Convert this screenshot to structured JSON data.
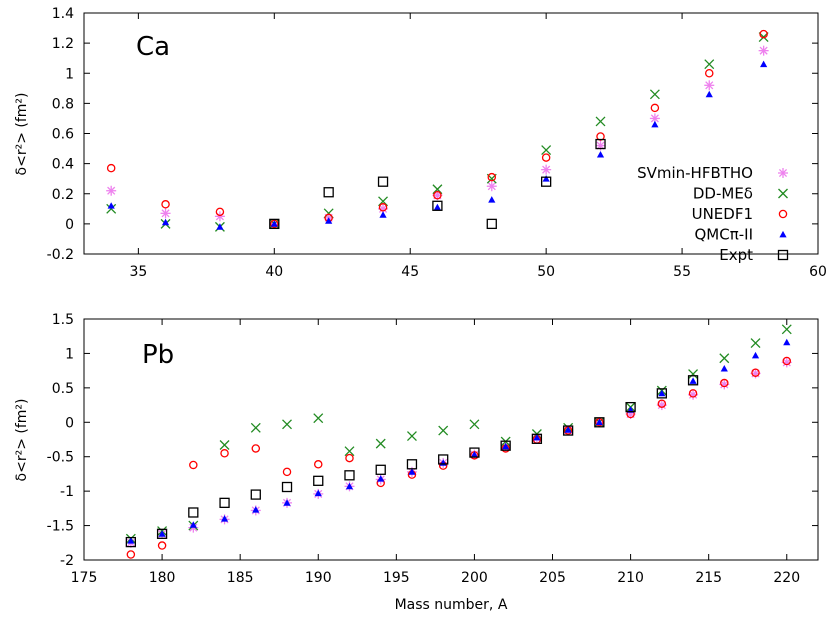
{
  "colors": {
    "SVmin-HFBTHO": "#ee82ee",
    "DD-MEδ": "#228b22",
    "UNEDF1": "#ff0000",
    "QMCπ-II": "#0000ff",
    "Expt": "#000000"
  },
  "chart_data": [
    {
      "type": "scatter",
      "panel_label": "Ca",
      "xlabel": "",
      "ylabel": "δ<r²> (fm²)",
      "xlim": [
        33,
        60
      ],
      "ylim": [
        -0.2,
        1.4
      ],
      "xticks": [
        35,
        40,
        45,
        50,
        55,
        60
      ],
      "yticks": [
        -0.2,
        0,
        0.2,
        0.4,
        0.6,
        0.8,
        1,
        1.2,
        1.4
      ],
      "legend": "right",
      "series": [
        {
          "name": "SVmin-HFBTHO",
          "marker": "asterisk",
          "x": [
            34,
            36,
            38,
            40,
            42,
            44,
            46,
            48,
            50,
            52,
            54,
            56,
            58
          ],
          "y": [
            0.22,
            0.07,
            0.05,
            0.0,
            0.04,
            0.1,
            0.19,
            0.25,
            0.36,
            0.52,
            0.7,
            0.92,
            1.15
          ]
        },
        {
          "name": "DD-MEδ",
          "marker": "x",
          "x": [
            34,
            36,
            38,
            40,
            42,
            44,
            46,
            48,
            50,
            52,
            54,
            56,
            58
          ],
          "y": [
            0.1,
            0.0,
            -0.02,
            0.0,
            0.07,
            0.15,
            0.23,
            0.3,
            0.49,
            0.68,
            0.86,
            1.06,
            1.24
          ]
        },
        {
          "name": "UNEDF1",
          "marker": "circle",
          "x": [
            34,
            36,
            38,
            40,
            42,
            44,
            46,
            48,
            50,
            52,
            54,
            56,
            58
          ],
          "y": [
            0.37,
            0.13,
            0.08,
            0.0,
            0.04,
            0.11,
            0.19,
            0.31,
            0.44,
            0.58,
            0.77,
            1.0,
            1.26
          ]
        },
        {
          "name": "QMCπ-II",
          "marker": "triangle",
          "x": [
            34,
            36,
            38,
            40,
            42,
            44,
            46,
            48,
            50,
            52,
            54,
            56,
            58
          ],
          "y": [
            0.12,
            0.01,
            -0.02,
            0.0,
            0.02,
            0.06,
            0.11,
            0.16,
            0.3,
            0.46,
            0.66,
            0.86,
            1.06
          ]
        },
        {
          "name": "Expt",
          "marker": "square",
          "x": [
            40,
            42,
            44,
            46,
            48,
            50,
            52
          ],
          "y": [
            0.0,
            0.21,
            0.28,
            0.12,
            0.0,
            0.28,
            0.53
          ]
        }
      ]
    },
    {
      "type": "scatter",
      "panel_label": "Pb",
      "xlabel": "Mass number, A",
      "ylabel": "δ<r²> (fm²)",
      "xlim": [
        175,
        222
      ],
      "ylim": [
        -2,
        1.5
      ],
      "xticks": [
        175,
        180,
        185,
        190,
        195,
        200,
        205,
        210,
        215,
        220
      ],
      "yticks": [
        -2,
        -1.5,
        -1,
        -0.5,
        0,
        0.5,
        1,
        1.5
      ],
      "legend": "none",
      "series": [
        {
          "name": "SVmin-HFBTHO",
          "marker": "asterisk",
          "x": [
            178,
            180,
            182,
            184,
            186,
            188,
            190,
            192,
            194,
            196,
            198,
            200,
            202,
            204,
            206,
            208,
            210,
            212,
            214,
            216,
            218,
            220
          ],
          "y": [
            -1.75,
            -1.62,
            -1.53,
            -1.41,
            -1.28,
            -1.17,
            -1.04,
            -0.93,
            -0.83,
            -0.72,
            -0.59,
            -0.47,
            -0.36,
            -0.23,
            -0.12,
            0.0,
            0.12,
            0.25,
            0.4,
            0.55,
            0.71,
            0.87
          ]
        },
        {
          "name": "DD-MEδ",
          "marker": "x",
          "x": [
            178,
            180,
            182,
            184,
            186,
            188,
            190,
            192,
            194,
            196,
            198,
            200,
            202,
            204,
            206,
            208,
            210,
            212,
            214,
            216,
            218,
            220
          ],
          "y": [
            -1.69,
            -1.58,
            -1.5,
            -0.33,
            -0.08,
            -0.03,
            0.06,
            -0.42,
            -0.31,
            -0.2,
            -0.12,
            -0.03,
            -0.28,
            -0.17,
            -0.08,
            0.0,
            0.22,
            0.46,
            0.7,
            0.93,
            1.15,
            1.35
          ]
        },
        {
          "name": "UNEDF1",
          "marker": "circle",
          "x": [
            178,
            180,
            182,
            184,
            186,
            188,
            190,
            192,
            194,
            196,
            198,
            200,
            202,
            204,
            206,
            208,
            210,
            212,
            214,
            216,
            218,
            220
          ],
          "y": [
            -1.92,
            -1.79,
            -0.62,
            -0.45,
            -0.38,
            -0.72,
            -0.61,
            -0.52,
            -0.88,
            -0.76,
            -0.63,
            -0.48,
            -0.38,
            -0.25,
            -0.12,
            0.0,
            0.12,
            0.27,
            0.42,
            0.57,
            0.72,
            0.89
          ]
        },
        {
          "name": "QMCπ-II",
          "marker": "triangle",
          "x": [
            178,
            180,
            182,
            184,
            186,
            188,
            190,
            192,
            194,
            196,
            198,
            200,
            202,
            204,
            206,
            208,
            210,
            212,
            214,
            216,
            218,
            220
          ],
          "y": [
            -1.72,
            -1.62,
            -1.49,
            -1.4,
            -1.27,
            -1.17,
            -1.03,
            -0.93,
            -0.82,
            -0.72,
            -0.59,
            -0.47,
            -0.35,
            -0.22,
            -0.11,
            0.0,
            0.18,
            0.42,
            0.6,
            0.78,
            0.97,
            1.16
          ]
        },
        {
          "name": "Expt",
          "marker": "square",
          "x": [
            178,
            180,
            182,
            184,
            186,
            188,
            190,
            192,
            194,
            196,
            198,
            200,
            202,
            204,
            206,
            208,
            210,
            212,
            214
          ],
          "y": [
            -1.74,
            -1.62,
            -1.31,
            -1.17,
            -1.05,
            -0.94,
            -0.85,
            -0.77,
            -0.69,
            -0.61,
            -0.54,
            -0.44,
            -0.34,
            -0.24,
            -0.12,
            0.0,
            0.22,
            0.42,
            0.61
          ]
        }
      ]
    }
  ]
}
